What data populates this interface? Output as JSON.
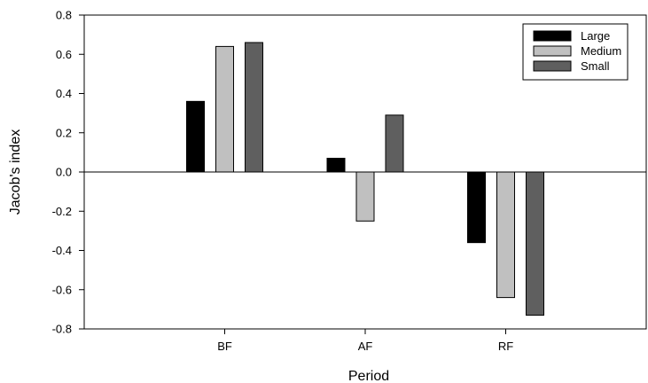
{
  "chart_data": {
    "type": "bar",
    "title": "",
    "xlabel": "Period",
    "ylabel": "Jacob's index",
    "categories": [
      "BF",
      "AF",
      "RF"
    ],
    "series": [
      {
        "name": "Large",
        "values": [
          0.36,
          0.07,
          -0.36
        ],
        "color": "#000000"
      },
      {
        "name": "Medium",
        "values": [
          0.64,
          -0.25,
          -0.64
        ],
        "color": "#c0c0c0"
      },
      {
        "name": "Small",
        "values": [
          0.66,
          0.29,
          -0.73
        ],
        "color": "#5f5f5f"
      }
    ],
    "ylim": [
      -0.8,
      0.8
    ],
    "yticks": [
      -0.8,
      -0.6,
      -0.4,
      -0.2,
      0.0,
      0.2,
      0.4,
      0.6,
      0.8
    ],
    "ytick_labels": [
      "-0.8",
      "-0.6",
      "-0.4",
      "-0.2",
      "0.0",
      "0.2",
      "0.4",
      "0.6",
      "0.8"
    ],
    "grid": false,
    "zero_line": true,
    "legend_position": "top-right"
  }
}
